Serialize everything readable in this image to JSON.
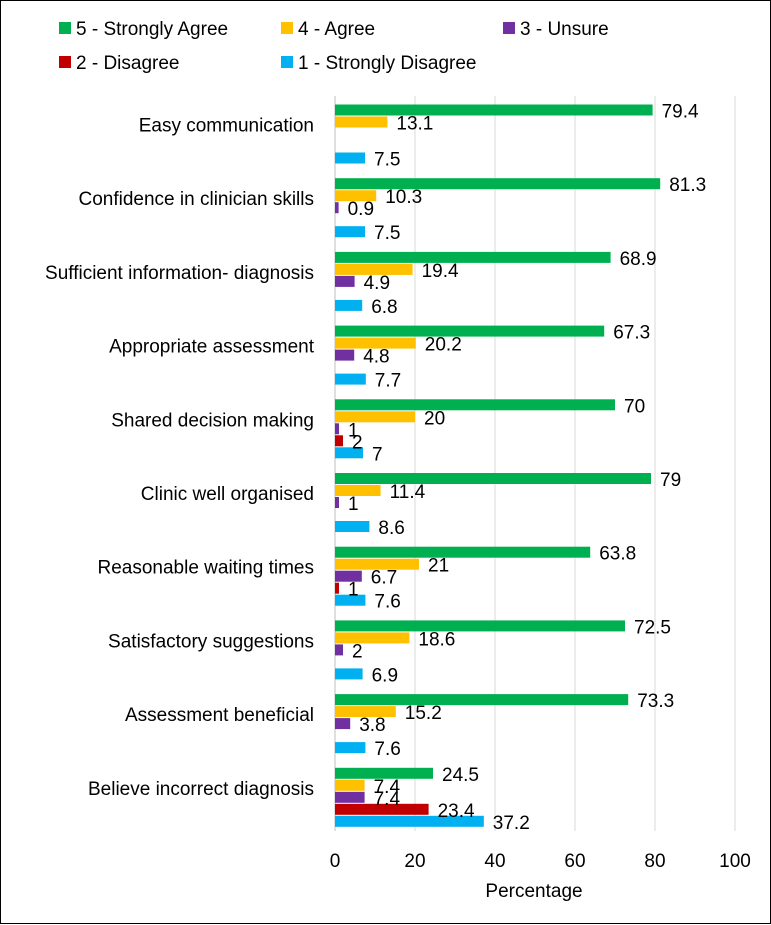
{
  "chart_data": {
    "type": "bar",
    "orientation": "horizontal",
    "xlabel": "Percentage",
    "xlim": [
      0,
      100
    ],
    "xticks": [
      0,
      20,
      40,
      60,
      80,
      100
    ],
    "grid": true,
    "legend_position": "top",
    "categories": [
      "Easy communication",
      "Confidence in clinician skills",
      "Sufficient information- diagnosis",
      "Appropriate assessment",
      "Shared decision making",
      "Clinic well organised",
      "Reasonable waiting times",
      "Satisfactory suggestions",
      "Assessment beneficial",
      "Believe incorrect diagnosis"
    ],
    "series": [
      {
        "name": "5 - Strongly Agree",
        "color": "#00B050",
        "values": [
          79.4,
          81.3,
          68.9,
          67.3,
          70,
          79,
          63.8,
          72.5,
          73.3,
          24.5
        ]
      },
      {
        "name": "4 - Agree",
        "color": "#FFC000",
        "values": [
          13.1,
          10.3,
          19.4,
          20.2,
          20,
          11.4,
          21,
          18.6,
          15.2,
          7.4
        ]
      },
      {
        "name": "3 - Unsure",
        "color": "#7030A0",
        "values": [
          null,
          0.9,
          4.9,
          4.8,
          1,
          1,
          6.7,
          2,
          3.8,
          7.4
        ]
      },
      {
        "name": "2 - Disagree",
        "color": "#C00000",
        "values": [
          null,
          null,
          null,
          null,
          2,
          null,
          1,
          null,
          null,
          23.4
        ]
      },
      {
        "name": "1 - Strongly Disagree",
        "color": "#00B0F0",
        "values": [
          7.5,
          7.5,
          6.8,
          7.7,
          7,
          8.6,
          7.6,
          6.9,
          7.6,
          37.2
        ]
      }
    ]
  }
}
